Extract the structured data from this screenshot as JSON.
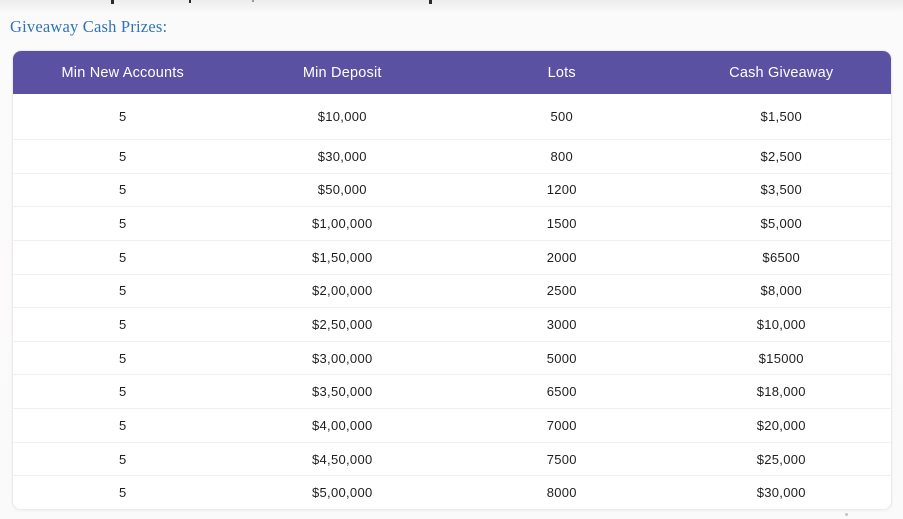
{
  "page": {
    "title": "Giveaway Cash Prizes:"
  },
  "colors": {
    "header_bg": "#5b51a3",
    "header_text": "#ffffff",
    "title_text": "#2e73b9",
    "row_separator": "#f1efef",
    "table_border": "#ecebeb"
  },
  "table": {
    "columns": [
      "Min New Accounts",
      "Min Deposit",
      "Lots",
      "Cash Giveaway"
    ],
    "rows": [
      [
        "5",
        "$10,000",
        "500",
        "$1,500"
      ],
      [
        "5",
        "$30,000",
        "800",
        "$2,500"
      ],
      [
        "5",
        "$50,000",
        "1200",
        "$3,500"
      ],
      [
        "5",
        "$1,00,000",
        "1500",
        "$5,000"
      ],
      [
        "5",
        "$1,50,000",
        "2000",
        "$6500"
      ],
      [
        "5",
        "$2,00,000",
        "2500",
        "$8,000"
      ],
      [
        "5",
        "$2,50,000",
        "3000",
        "$10,000"
      ],
      [
        "5",
        "$3,00,000",
        "5000",
        "$15000"
      ],
      [
        "5",
        "$3,50,000",
        "6500",
        "$18,000"
      ],
      [
        "5",
        "$4,00,000",
        "7000",
        "$20,000"
      ],
      [
        "5",
        "$4,50,000",
        "7500",
        "$25,000"
      ],
      [
        "5",
        "$5,00,000",
        "8000",
        "$30,000"
      ]
    ]
  }
}
